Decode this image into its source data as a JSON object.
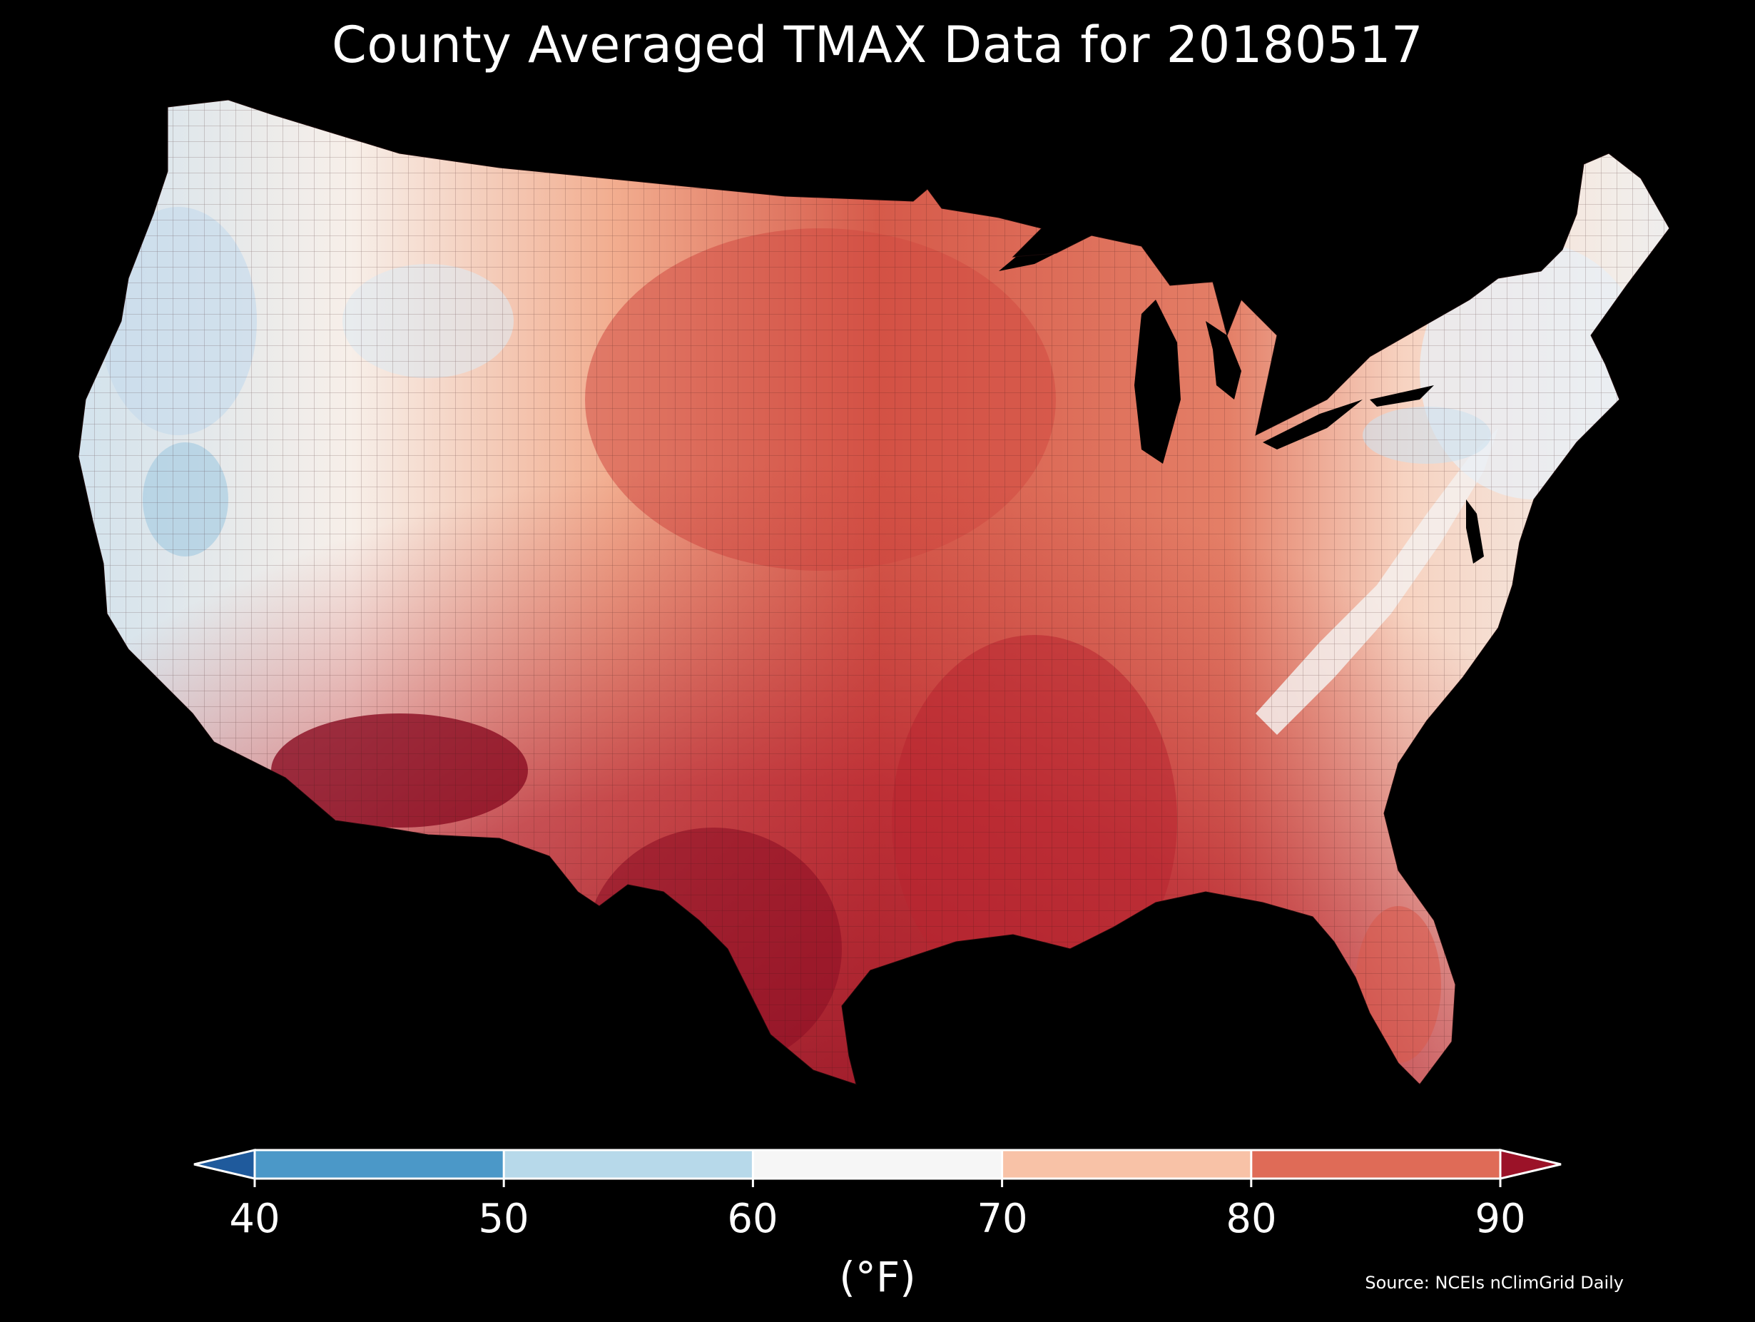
{
  "title": "County Averaged TMAX Data for 20180517",
  "units_label": "(°F)",
  "source": "Source: NCEIs nClimGrid Daily",
  "colorbar": {
    "ticks": [
      "40",
      "50",
      "60",
      "70",
      "80",
      "90"
    ],
    "bins": [
      {
        "from": 40,
        "to": 50,
        "color": "#4b98c8"
      },
      {
        "from": 50,
        "to": 60,
        "color": "#b7d9ea"
      },
      {
        "from": 60,
        "to": 70,
        "color": "#f6f6f6"
      },
      {
        "from": 70,
        "to": 80,
        "color": "#f8c2a7"
      },
      {
        "from": 80,
        "to": 90,
        "color": "#df6b57"
      }
    ],
    "under_color": "#1f5a9c",
    "over_color": "#9b1228"
  },
  "map": {
    "ocean_color": "#000000",
    "county_line_color": "#3a1a1a"
  }
}
